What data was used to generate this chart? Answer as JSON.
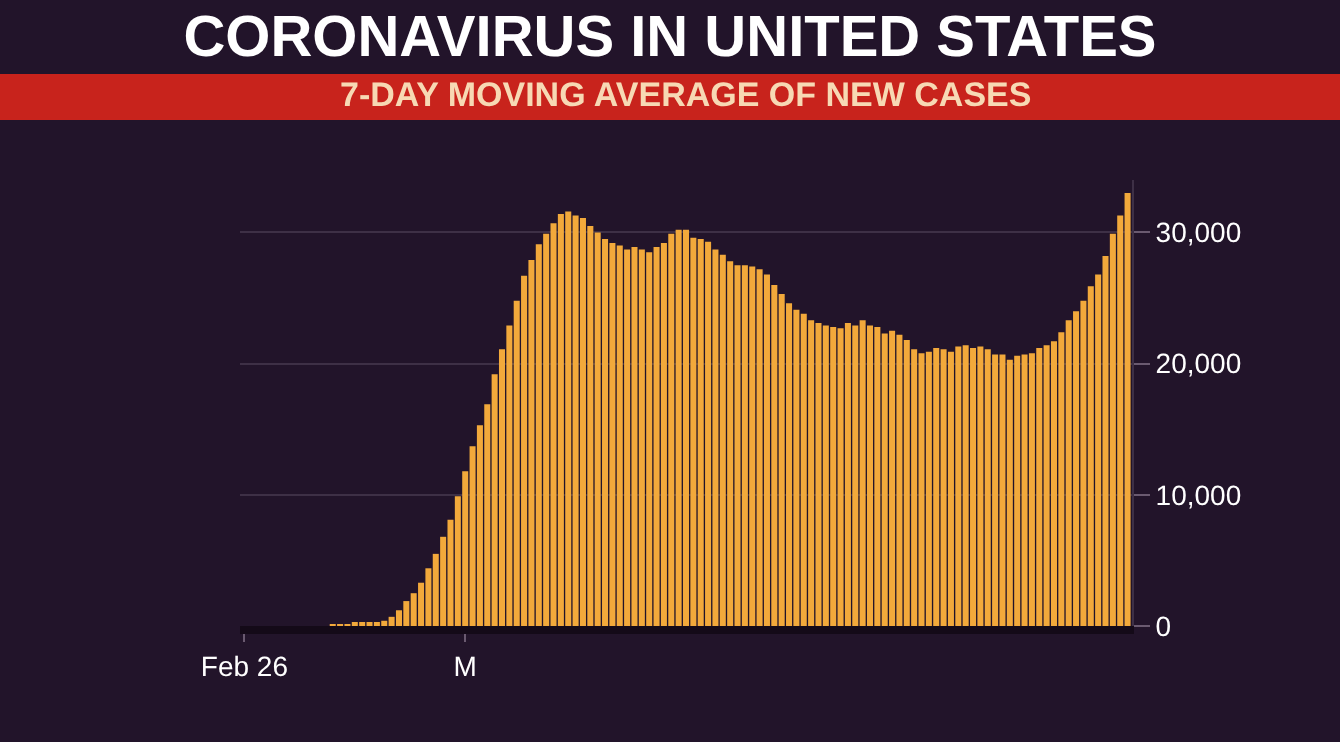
{
  "chart_data": {
    "type": "bar",
    "title": "CORONAVIRUS IN UNITED STATES",
    "subtitle": "7-DAY MOVING AVERAGE OF NEW CASES",
    "categories": [
      "Feb 26",
      null,
      null,
      null,
      null,
      null,
      null,
      null,
      null,
      null,
      null,
      null,
      null,
      null,
      null,
      null,
      null,
      null,
      null,
      null,
      null,
      null,
      null,
      null,
      null,
      null,
      null,
      null,
      null,
      null,
      "M",
      null,
      null,
      null,
      null,
      null,
      null,
      null,
      null,
      null,
      null,
      null,
      null,
      null,
      null,
      null,
      null,
      null,
      null,
      null,
      null,
      null,
      null,
      null,
      null,
      null,
      null,
      null,
      null,
      null,
      null,
      null,
      null,
      null,
      null,
      null,
      null,
      null,
      null,
      null,
      null,
      null,
      null,
      null,
      null,
      null,
      null,
      null,
      null,
      null,
      null,
      null,
      null,
      null,
      null,
      null,
      null,
      null,
      null,
      null,
      null,
      null,
      null,
      null,
      null,
      null,
      null,
      null,
      null,
      null,
      null,
      null,
      null,
      null,
      null,
      null,
      null,
      null,
      null,
      null,
      null,
      null,
      null,
      null,
      null,
      null,
      null,
      null,
      null,
      null,
      null
    ],
    "values": [
      0,
      0,
      0,
      0,
      0,
      0,
      0,
      0,
      0,
      0,
      0,
      0,
      100,
      100,
      100,
      200,
      200,
      200,
      300,
      400,
      700,
      1200,
      1900,
      2500,
      3300,
      4400,
      5500,
      6800,
      8100,
      9900,
      11800,
      13700,
      15300,
      16900,
      19200,
      21100,
      22900,
      24800,
      26700,
      27900,
      29100,
      29900,
      30700,
      31400,
      31600,
      31300,
      31100,
      30500,
      30000,
      29500,
      29200,
      29000,
      28700,
      28900,
      28700,
      28500,
      28900,
      29200,
      29900,
      30200,
      30200,
      29600,
      29500,
      29300,
      28700,
      28300,
      27800,
      27500,
      27500,
      27400,
      27200,
      26800,
      26000,
      25300,
      24600,
      24100,
      23800,
      23300,
      23100,
      22900,
      22800,
      22700,
      23100,
      22900,
      23300,
      22900,
      22800,
      22300,
      22500,
      22200,
      21800,
      21100,
      20800,
      20900,
      21200,
      21100,
      20900,
      21300,
      21400,
      21200,
      21300,
      21100,
      20700,
      20700,
      20300,
      20600,
      20700,
      20800,
      21200,
      21400,
      21700,
      22400,
      23300,
      24000,
      24800,
      25900,
      26800,
      28200,
      29900,
      31300,
      33000
    ],
    "color": "#f2a93b",
    "ylim": [
      0,
      34000
    ],
    "yticks": [
      0,
      {
        "value": 10000,
        "label": "10,000"
      },
      {
        "value": 20000,
        "label": "20,000"
      },
      {
        "value": 30000,
        "label": "30,000"
      }
    ],
    "grid": "y"
  }
}
